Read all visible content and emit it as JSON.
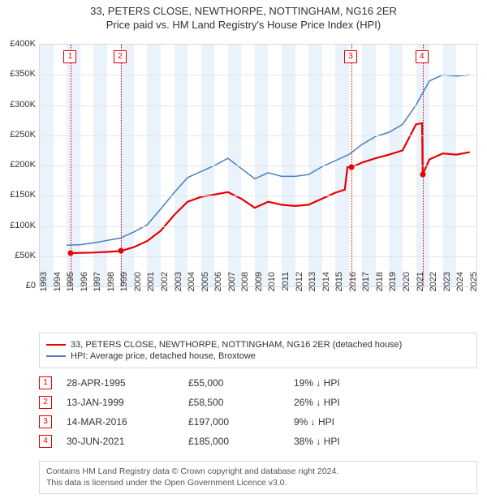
{
  "titles": {
    "main": "33, PETERS CLOSE, NEWTHORPE, NOTTINGHAM, NG16 2ER",
    "sub": "Price paid vs. HM Land Registry's House Price Index (HPI)"
  },
  "chart": {
    "type": "line",
    "background_color": "#ffffff",
    "grid_color": "#e6e6e6",
    "border_color": "#d9d9d9",
    "marker_color": "#e60000",
    "x_years": [
      1993,
      1994,
      1995,
      1996,
      1997,
      1998,
      1999,
      2000,
      2001,
      2002,
      2003,
      2004,
      2005,
      2006,
      2007,
      2008,
      2009,
      2010,
      2011,
      2012,
      2013,
      2014,
      2015,
      2016,
      2017,
      2018,
      2019,
      2020,
      2021,
      2022,
      2023,
      2024,
      2025
    ],
    "xlim": [
      1993,
      2025.5
    ],
    "ylim": [
      0,
      400000
    ],
    "ytick_step": 50000,
    "yticks": [
      "£0",
      "£50K",
      "£100K",
      "£150K",
      "£200K",
      "£250K",
      "£300K",
      "£350K",
      "£400K"
    ],
    "shade_color": "#eaf2fb",
    "shade_ranges": [
      [
        1993,
        1994
      ],
      [
        1995,
        1996
      ],
      [
        1997,
        1998
      ],
      [
        1999,
        2000
      ],
      [
        2001,
        2002
      ],
      [
        2003,
        2004
      ],
      [
        2005,
        2006
      ],
      [
        2007,
        2008
      ],
      [
        2009,
        2010
      ],
      [
        2011,
        2012
      ],
      [
        2013,
        2014
      ],
      [
        2015,
        2016
      ],
      [
        2017,
        2018
      ],
      [
        2019,
        2020
      ],
      [
        2021,
        2022
      ],
      [
        2023,
        2024
      ]
    ],
    "markers": [
      {
        "n": "1",
        "year": 1995.32
      },
      {
        "n": "2",
        "year": 1999.04
      },
      {
        "n": "3",
        "year": 2016.2
      },
      {
        "n": "4",
        "year": 2021.5
      }
    ],
    "series": [
      {
        "name": "property",
        "label": "33, PETERS CLOSE, NEWTHORPE, NOTTINGHAM, NG16 2ER (detached house)",
        "color": "#e60000",
        "width": 2.2,
        "data": [
          [
            1995.32,
            55000
          ],
          [
            1996,
            55500
          ],
          [
            1997,
            56000
          ],
          [
            1998,
            57000
          ],
          [
            1999.04,
            58500
          ],
          [
            2000,
            65000
          ],
          [
            2001,
            75000
          ],
          [
            2002,
            92000
          ],
          [
            2003,
            118000
          ],
          [
            2004,
            140000
          ],
          [
            2005,
            148000
          ],
          [
            2006,
            152000
          ],
          [
            2007,
            156000
          ],
          [
            2008,
            145000
          ],
          [
            2009,
            130000
          ],
          [
            2010,
            140000
          ],
          [
            2011,
            135000
          ],
          [
            2012,
            133000
          ],
          [
            2013,
            135000
          ],
          [
            2014,
            145000
          ],
          [
            2015,
            155000
          ],
          [
            2015.7,
            160000
          ],
          [
            2015.9,
            198000
          ],
          [
            2016.2,
            197000
          ],
          [
            2017,
            205000
          ],
          [
            2018,
            212000
          ],
          [
            2019,
            218000
          ],
          [
            2020,
            225000
          ],
          [
            2021,
            268000
          ],
          [
            2021.45,
            270000
          ],
          [
            2021.5,
            185000
          ],
          [
            2022,
            210000
          ],
          [
            2023,
            220000
          ],
          [
            2024,
            218000
          ],
          [
            2025,
            222000
          ]
        ],
        "dots": [
          [
            1995.32,
            55000
          ],
          [
            1999.04,
            58500
          ],
          [
            2016.2,
            197000
          ],
          [
            2021.5,
            185000
          ]
        ]
      },
      {
        "name": "hpi",
        "label": "HPI: Average price, detached house, Broxtowe",
        "color": "#4a7ebb",
        "width": 1.5,
        "data": [
          [
            1995,
            68000
          ],
          [
            1996,
            69000
          ],
          [
            1997,
            72000
          ],
          [
            1998,
            76000
          ],
          [
            1999,
            80000
          ],
          [
            2000,
            90000
          ],
          [
            2001,
            102000
          ],
          [
            2002,
            128000
          ],
          [
            2003,
            155000
          ],
          [
            2004,
            180000
          ],
          [
            2005,
            190000
          ],
          [
            2006,
            200000
          ],
          [
            2007,
            212000
          ],
          [
            2008,
            195000
          ],
          [
            2009,
            178000
          ],
          [
            2010,
            188000
          ],
          [
            2011,
            182000
          ],
          [
            2012,
            182000
          ],
          [
            2013,
            185000
          ],
          [
            2014,
            198000
          ],
          [
            2015,
            208000
          ],
          [
            2016,
            218000
          ],
          [
            2017,
            235000
          ],
          [
            2018,
            248000
          ],
          [
            2019,
            255000
          ],
          [
            2020,
            268000
          ],
          [
            2021,
            300000
          ],
          [
            2022,
            340000
          ],
          [
            2023,
            350000
          ],
          [
            2024,
            348000
          ],
          [
            2025,
            350000
          ]
        ]
      }
    ]
  },
  "legend": {
    "items": [
      {
        "color": "#e60000",
        "label": "33, PETERS CLOSE, NEWTHORPE, NOTTINGHAM, NG16 2ER (detached house)"
      },
      {
        "color": "#4a7ebb",
        "label": "HPI: Average price, detached house, Broxtowe"
      }
    ]
  },
  "transactions": {
    "rows": [
      {
        "n": "1",
        "date": "28-APR-1995",
        "price": "£55,000",
        "diff": "19% ↓ HPI"
      },
      {
        "n": "2",
        "date": "13-JAN-1999",
        "price": "£58,500",
        "diff": "26% ↓ HPI"
      },
      {
        "n": "3",
        "date": "14-MAR-2016",
        "price": "£197,000",
        "diff": "9% ↓ HPI"
      },
      {
        "n": "4",
        "date": "30-JUN-2021",
        "price": "£185,000",
        "diff": "38% ↓ HPI"
      }
    ]
  },
  "footer": {
    "line1": "Contains HM Land Registry data © Crown copyright and database right 2024.",
    "line2": "This data is licensed under the Open Government Licence v3.0."
  }
}
